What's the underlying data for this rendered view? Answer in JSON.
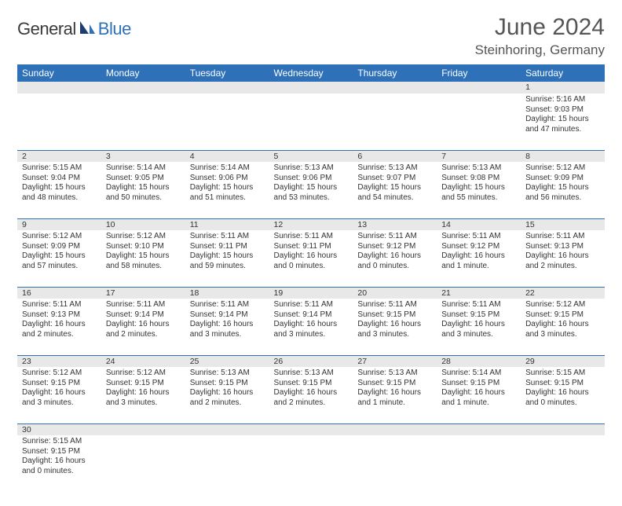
{
  "logo": {
    "part1": "General",
    "part2": "Blue"
  },
  "title": "June 2024",
  "location": "Steinhoring, Germany",
  "colors": {
    "header_bg": "#2e71b8",
    "header_text": "#ffffff",
    "daynum_bg": "#e8e8e8",
    "border": "#2e71b8",
    "text": "#333333",
    "title_text": "#555555",
    "logo_gray": "#3a3a3a",
    "logo_blue": "#2e71b8"
  },
  "weekdays": [
    "Sunday",
    "Monday",
    "Tuesday",
    "Wednesday",
    "Thursday",
    "Friday",
    "Saturday"
  ],
  "weeks": [
    {
      "nums": [
        "",
        "",
        "",
        "",
        "",
        "",
        "1"
      ],
      "cells": [
        null,
        null,
        null,
        null,
        null,
        null,
        {
          "sunrise": "5:16 AM",
          "sunset": "9:03 PM",
          "daylight": "15 hours and 47 minutes."
        }
      ]
    },
    {
      "nums": [
        "2",
        "3",
        "4",
        "5",
        "6",
        "7",
        "8"
      ],
      "cells": [
        {
          "sunrise": "5:15 AM",
          "sunset": "9:04 PM",
          "daylight": "15 hours and 48 minutes."
        },
        {
          "sunrise": "5:14 AM",
          "sunset": "9:05 PM",
          "daylight": "15 hours and 50 minutes."
        },
        {
          "sunrise": "5:14 AM",
          "sunset": "9:06 PM",
          "daylight": "15 hours and 51 minutes."
        },
        {
          "sunrise": "5:13 AM",
          "sunset": "9:06 PM",
          "daylight": "15 hours and 53 minutes."
        },
        {
          "sunrise": "5:13 AM",
          "sunset": "9:07 PM",
          "daylight": "15 hours and 54 minutes."
        },
        {
          "sunrise": "5:13 AM",
          "sunset": "9:08 PM",
          "daylight": "15 hours and 55 minutes."
        },
        {
          "sunrise": "5:12 AM",
          "sunset": "9:09 PM",
          "daylight": "15 hours and 56 minutes."
        }
      ]
    },
    {
      "nums": [
        "9",
        "10",
        "11",
        "12",
        "13",
        "14",
        "15"
      ],
      "cells": [
        {
          "sunrise": "5:12 AM",
          "sunset": "9:09 PM",
          "daylight": "15 hours and 57 minutes."
        },
        {
          "sunrise": "5:12 AM",
          "sunset": "9:10 PM",
          "daylight": "15 hours and 58 minutes."
        },
        {
          "sunrise": "5:11 AM",
          "sunset": "9:11 PM",
          "daylight": "15 hours and 59 minutes."
        },
        {
          "sunrise": "5:11 AM",
          "sunset": "9:11 PM",
          "daylight": "16 hours and 0 minutes."
        },
        {
          "sunrise": "5:11 AM",
          "sunset": "9:12 PM",
          "daylight": "16 hours and 0 minutes."
        },
        {
          "sunrise": "5:11 AM",
          "sunset": "9:12 PM",
          "daylight": "16 hours and 1 minute."
        },
        {
          "sunrise": "5:11 AM",
          "sunset": "9:13 PM",
          "daylight": "16 hours and 2 minutes."
        }
      ]
    },
    {
      "nums": [
        "16",
        "17",
        "18",
        "19",
        "20",
        "21",
        "22"
      ],
      "cells": [
        {
          "sunrise": "5:11 AM",
          "sunset": "9:13 PM",
          "daylight": "16 hours and 2 minutes."
        },
        {
          "sunrise": "5:11 AM",
          "sunset": "9:14 PM",
          "daylight": "16 hours and 2 minutes."
        },
        {
          "sunrise": "5:11 AM",
          "sunset": "9:14 PM",
          "daylight": "16 hours and 3 minutes."
        },
        {
          "sunrise": "5:11 AM",
          "sunset": "9:14 PM",
          "daylight": "16 hours and 3 minutes."
        },
        {
          "sunrise": "5:11 AM",
          "sunset": "9:15 PM",
          "daylight": "16 hours and 3 minutes."
        },
        {
          "sunrise": "5:11 AM",
          "sunset": "9:15 PM",
          "daylight": "16 hours and 3 minutes."
        },
        {
          "sunrise": "5:12 AM",
          "sunset": "9:15 PM",
          "daylight": "16 hours and 3 minutes."
        }
      ]
    },
    {
      "nums": [
        "23",
        "24",
        "25",
        "26",
        "27",
        "28",
        "29"
      ],
      "cells": [
        {
          "sunrise": "5:12 AM",
          "sunset": "9:15 PM",
          "daylight": "16 hours and 3 minutes."
        },
        {
          "sunrise": "5:12 AM",
          "sunset": "9:15 PM",
          "daylight": "16 hours and 3 minutes."
        },
        {
          "sunrise": "5:13 AM",
          "sunset": "9:15 PM",
          "daylight": "16 hours and 2 minutes."
        },
        {
          "sunrise": "5:13 AM",
          "sunset": "9:15 PM",
          "daylight": "16 hours and 2 minutes."
        },
        {
          "sunrise": "5:13 AM",
          "sunset": "9:15 PM",
          "daylight": "16 hours and 1 minute."
        },
        {
          "sunrise": "5:14 AM",
          "sunset": "9:15 PM",
          "daylight": "16 hours and 1 minute."
        },
        {
          "sunrise": "5:15 AM",
          "sunset": "9:15 PM",
          "daylight": "16 hours and 0 minutes."
        }
      ]
    },
    {
      "nums": [
        "30",
        "",
        "",
        "",
        "",
        "",
        ""
      ],
      "cells": [
        {
          "sunrise": "5:15 AM",
          "sunset": "9:15 PM",
          "daylight": "16 hours and 0 minutes."
        },
        null,
        null,
        null,
        null,
        null,
        null
      ]
    }
  ],
  "labels": {
    "sunrise": "Sunrise:",
    "sunset": "Sunset:",
    "daylight": "Daylight:"
  }
}
